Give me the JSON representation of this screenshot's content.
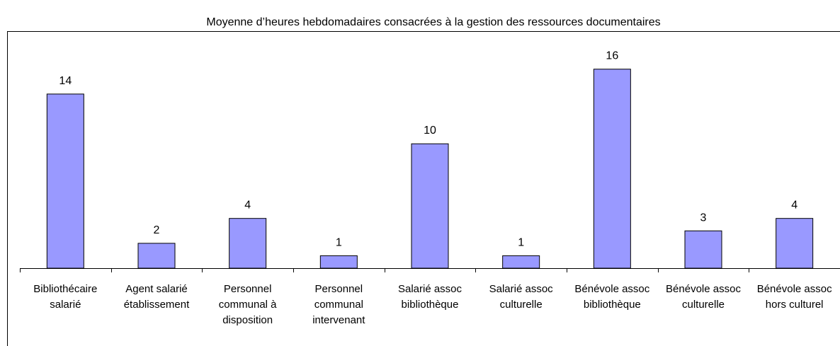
{
  "chart_data": {
    "type": "bar",
    "title": "Moyenne d’heures hebdomadaires consacrées à la gestion des ressources documentaires",
    "categories": [
      "Bibliothécaire salarié",
      "Agent salarié établissement",
      "Personnel communal à disposition",
      "Personnel communal intervenant",
      "Salarié assoc bibliothèque",
      "Salarié assoc culturelle",
      "Bénévole assoc bibliothèque",
      "Bénévole assoc culturelle",
      "Bénévole assoc hors culturel"
    ],
    "values": [
      14,
      2,
      4,
      1,
      10,
      1,
      16,
      3,
      4
    ],
    "color": "#9999ff",
    "ylim": [
      0,
      19
    ]
  }
}
